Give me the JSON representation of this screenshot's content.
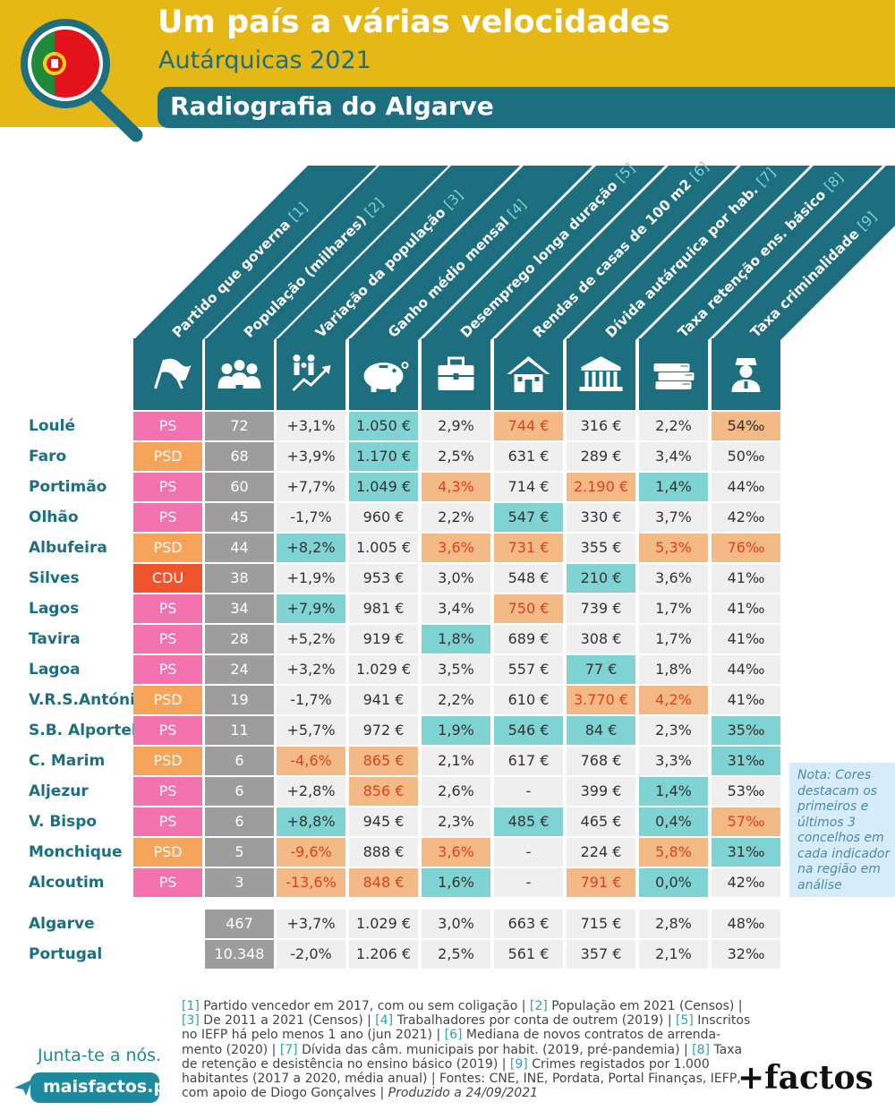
{
  "header": {
    "title": "Um país a várias velocidades",
    "subtitle": "Autárquicas 2021",
    "band": "Radiografia do Algarve"
  },
  "columns": [
    {
      "label": "Partido que governa",
      "ref": "[1]",
      "icon": "flags-icon"
    },
    {
      "label": "População (milhares)",
      "ref": "[2]",
      "icon": "people-icon"
    },
    {
      "label": "Variação da população",
      "ref": "[3]",
      "icon": "family-growth-icon"
    },
    {
      "label": "Ganho médio mensal",
      "ref": "[4]",
      "icon": "piggy-bank-icon"
    },
    {
      "label": "Desemprego longa duração",
      "ref": "[5]",
      "icon": "briefcase-icon"
    },
    {
      "label": "Rendas de casas de 100 m2",
      "ref": "[6]",
      "icon": "house-icon"
    },
    {
      "label": "Dívida autárquica por hab.",
      "ref": "[7]",
      "icon": "city-hall-icon"
    },
    {
      "label": "Taxa retenção ens. básico",
      "ref": "[8]",
      "icon": "books-icon"
    },
    {
      "label": "Taxa criminalidade",
      "ref": "[9]",
      "icon": "police-officer-icon"
    }
  ],
  "colors": {
    "PS": "#f373ae",
    "PSD": "#f6a45a",
    "CDU": "#f0542d",
    "teal": "#7fd3d3",
    "orange": "#f3b987",
    "header_teal": "#1d6f80",
    "yellow": "#e6b816"
  },
  "chart_data": {
    "type": "table",
    "title": "Radiografia do Algarve",
    "columns": [
      "Partido que governa",
      "População (milhares)",
      "Variação da população",
      "Ganho médio mensal",
      "Desemprego longa duração",
      "Rendas de casas de 100 m2",
      "Dívida autárquica por hab.",
      "Taxa retenção ens. básico",
      "Taxa criminalidade"
    ],
    "rows": [
      {
        "name": "Loulé",
        "party": "PS",
        "values": [
          "72",
          "+3,1%",
          "1.050 €",
          "2,9%",
          "744 €",
          "316 €",
          "2,2%",
          "54‰"
        ],
        "highlight": [
          "",
          "",
          "teal",
          "",
          "orange-red",
          "",
          "",
          "orange"
        ]
      },
      {
        "name": "Faro",
        "party": "PSD",
        "values": [
          "68",
          "+3,9%",
          "1.170 €",
          "2,5%",
          "631 €",
          "289 €",
          "3,4%",
          "50‰"
        ],
        "highlight": [
          "",
          "",
          "teal",
          "",
          "",
          "",
          "",
          ""
        ]
      },
      {
        "name": "Portimão",
        "party": "PS",
        "values": [
          "60",
          "+7,7%",
          "1.049 €",
          "4,3%",
          "714 €",
          "2.190 €",
          "1,4%",
          "44‰"
        ],
        "highlight": [
          "",
          "",
          "teal",
          "orange-red",
          "",
          "orange-red",
          "teal",
          ""
        ]
      },
      {
        "name": "Olhão",
        "party": "PS",
        "values": [
          "45",
          "-1,7%",
          "960 €",
          "2,2%",
          "547 €",
          "330 €",
          "3,7%",
          "42‰"
        ],
        "highlight": [
          "",
          "",
          "",
          "",
          "teal",
          "",
          "",
          ""
        ]
      },
      {
        "name": "Albufeira",
        "party": "PSD",
        "values": [
          "44",
          "+8,2%",
          "1.005 €",
          "3,6%",
          "731 €",
          "355 €",
          "5,3%",
          "76‰"
        ],
        "highlight": [
          "",
          "teal",
          "",
          "orange-red",
          "orange-red",
          "",
          "orange-red",
          "orange-red"
        ]
      },
      {
        "name": "Silves",
        "party": "CDU",
        "values": [
          "38",
          "+1,9%",
          "953 €",
          "3,0%",
          "548 €",
          "210 €",
          "3,6%",
          "41‰"
        ],
        "highlight": [
          "",
          "",
          "",
          "",
          "",
          "teal",
          "",
          ""
        ]
      },
      {
        "name": "Lagos",
        "party": "PS",
        "values": [
          "34",
          "+7,9%",
          "981 €",
          "3,4%",
          "750 €",
          "739 €",
          "1,7%",
          "41‰"
        ],
        "highlight": [
          "",
          "teal",
          "",
          "",
          "orange-red",
          "",
          "",
          ""
        ]
      },
      {
        "name": "Tavira",
        "party": "PS",
        "values": [
          "28",
          "+5,2%",
          "919 €",
          "1,8%",
          "689 €",
          "308 €",
          "1,7%",
          "41‰"
        ],
        "highlight": [
          "",
          "",
          "",
          "teal",
          "",
          "",
          "",
          ""
        ]
      },
      {
        "name": "Lagoa",
        "party": "PS",
        "values": [
          "24",
          "+3,2%",
          "1.029 €",
          "3,5%",
          "557 €",
          "77 €",
          "1,8%",
          "44‰"
        ],
        "highlight": [
          "",
          "",
          "",
          "",
          "",
          "teal",
          "",
          ""
        ]
      },
      {
        "name": "V.R.S.António",
        "party": "PSD",
        "values": [
          "19",
          "-1,7%",
          "941 €",
          "2,2%",
          "610 €",
          "3.770 €",
          "4,2%",
          "41‰"
        ],
        "highlight": [
          "",
          "",
          "",
          "",
          "",
          "orange-red",
          "orange-red",
          ""
        ]
      },
      {
        "name": "S.B. Alportel",
        "party": "PS",
        "values": [
          "11",
          "+5,7%",
          "972 €",
          "1,9%",
          "546 €",
          "84 €",
          "2,3%",
          "35‰"
        ],
        "highlight": [
          "",
          "",
          "",
          "teal",
          "teal",
          "teal",
          "",
          "teal"
        ]
      },
      {
        "name": "C. Marim",
        "party": "PSD",
        "values": [
          "6",
          "-4,6%",
          "865 €",
          "2,1%",
          "617 €",
          "768 €",
          "3,3%",
          "31‰"
        ],
        "highlight": [
          "",
          "orange-red",
          "orange-red",
          "",
          "",
          "",
          "",
          "teal"
        ]
      },
      {
        "name": "Aljezur",
        "party": "PS",
        "values": [
          "6",
          "+2,8%",
          "856 €",
          "2,6%",
          "-",
          "399 €",
          "1,4%",
          "53‰"
        ],
        "highlight": [
          "",
          "",
          "orange-red",
          "",
          "",
          "",
          "teal",
          ""
        ]
      },
      {
        "name": "V. Bispo",
        "party": "PS",
        "values": [
          "6",
          "+8,8%",
          "945 €",
          "2,3%",
          "485 €",
          "465 €",
          "0,4%",
          "57‰"
        ],
        "highlight": [
          "",
          "teal",
          "",
          "",
          "teal",
          "",
          "teal",
          "orange-red"
        ]
      },
      {
        "name": "Monchique",
        "party": "PSD",
        "values": [
          "5",
          "-9,6%",
          "888 €",
          "3,6%",
          "-",
          "224 €",
          "5,8%",
          "31‰"
        ],
        "highlight": [
          "",
          "orange-red",
          "",
          "orange-red",
          "",
          "",
          "orange-red",
          "teal"
        ]
      },
      {
        "name": "Alcoutim",
        "party": "PS",
        "values": [
          "3",
          "-13,6%",
          "848 €",
          "1,6%",
          "-",
          "791 €",
          "0,0%",
          "42‰"
        ],
        "highlight": [
          "",
          "orange-red",
          "orange-red",
          "teal",
          "",
          "orange-red",
          "teal",
          ""
        ]
      }
    ],
    "totals": [
      {
        "name": "Algarve",
        "values": [
          "467",
          "+3,7%",
          "1.029 €",
          "3,0%",
          "663 €",
          "715 €",
          "2,8%",
          "48‰"
        ]
      },
      {
        "name": "Portugal",
        "values": [
          "10.348",
          "-2,0%",
          "1.206 €",
          "2,5%",
          "561 €",
          "357 €",
          "2,1%",
          "32‰"
        ]
      }
    ]
  },
  "note": "Nota: Cores destacam os primeiros e últimos 3 concelhos em cada indicador na região em análise",
  "footnotes": [
    {
      "ref": "[1]",
      "text": " Partido vencedor em 2017, com ou sem coligação | "
    },
    {
      "ref": "[2]",
      "text": " População em 2021 (Censos) | "
    },
    {
      "ref": "[3]",
      "text": " De 2011 a 2021 (Censos) | "
    },
    {
      "ref": "[4]",
      "text": " Trabalhadores por conta de outrem (2019) | "
    },
    {
      "ref": "[5]",
      "text": " Inscritos no IEFP há pelo menos 1 ano (jun 2021) | "
    },
    {
      "ref": "[6]",
      "text": " Mediana de novos contratos de arrenda-mento (2020) | "
    },
    {
      "ref": "[7]",
      "text": " Dívida das câm. municipais por habit. (2019, pré-pandemia) | "
    },
    {
      "ref": "[8]",
      "text": " Taxa de retenção e desistência no ensino básico (2019) | "
    },
    {
      "ref": "[9]",
      "text": " Crimes registados por 1.000 habitantes (2017 a 2020, média anual) | Fontes: CNE, INE, Pordata, Portal Finanças, IEFP, com apoio de Diogo Gonçalves | "
    }
  ],
  "footnote_produced": "Produzido a 24/09/2021",
  "footer": {
    "junta": "Junta-te a nós.",
    "site": "maisfactos.pt",
    "brand": "+factos"
  }
}
